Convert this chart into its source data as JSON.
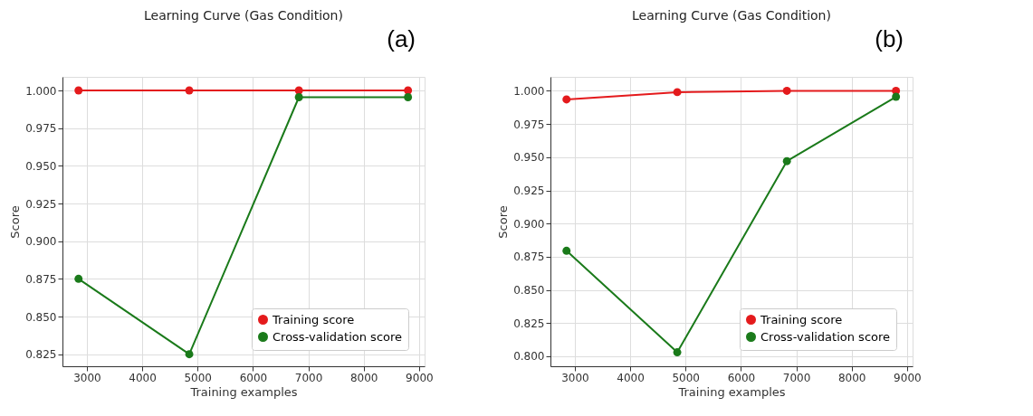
{
  "chart_data": [
    {
      "type": "line",
      "title": "Learning Curve (Gas Condition)",
      "xlabel": "Training examples",
      "ylabel": "Score",
      "annotations": [
        "(a)"
      ],
      "x": [
        2850,
        4850,
        6830,
        8800
      ],
      "xlim": [
        2560,
        9100
      ],
      "xticks": [
        3000,
        4000,
        5000,
        6000,
        7000,
        8000,
        9000
      ],
      "ylim": [
        0.817,
        1.009
      ],
      "yticks": [
        {
          "value": 0.825,
          "label": "0.825"
        },
        {
          "value": 0.85,
          "label": "0.850"
        },
        {
          "value": 0.875,
          "label": "0.875"
        },
        {
          "value": 0.9,
          "label": "0.900"
        },
        {
          "value": 0.925,
          "label": "0.925"
        },
        {
          "value": 0.95,
          "label": "0.950"
        },
        {
          "value": 0.975,
          "label": "0.975"
        },
        {
          "value": 1.0,
          "label": "1.000"
        }
      ],
      "grid": true,
      "legend": "bottom right",
      "marker": "circle",
      "line_style": "solid",
      "series": [
        {
          "name": "Training score",
          "color": "#e41a1c",
          "values": [
            1.0,
            1.0,
            1.0,
            1.0
          ]
        },
        {
          "name": "Cross-validation score",
          "color": "#1a7a1a",
          "values": [
            0.875,
            0.825,
            0.9955,
            0.9955
          ]
        }
      ]
    },
    {
      "type": "line",
      "title": "Learning Curve (Gas Condition)",
      "xlabel": "Training examples",
      "ylabel": "Score",
      "annotations": [
        "(b)"
      ],
      "x": [
        2850,
        4850,
        6830,
        8800
      ],
      "xlim": [
        2560,
        9100
      ],
      "xticks": [
        3000,
        4000,
        5000,
        6000,
        7000,
        8000,
        9000
      ],
      "ylim": [
        0.7925,
        1.0105
      ],
      "yticks": [
        {
          "value": 0.8,
          "label": "0.800"
        },
        {
          "value": 0.825,
          "label": "0.825"
        },
        {
          "value": 0.85,
          "label": "0.850"
        },
        {
          "value": 0.875,
          "label": "0.875"
        },
        {
          "value": 0.9,
          "label": "0.900"
        },
        {
          "value": 0.925,
          "label": "0.925"
        },
        {
          "value": 0.95,
          "label": "0.950"
        },
        {
          "value": 0.975,
          "label": "0.975"
        },
        {
          "value": 1.0,
          "label": "1.000"
        }
      ],
      "grid": true,
      "legend": "bottom right",
      "marker": "circle",
      "line_style": "solid",
      "series": [
        {
          "name": "Training score",
          "color": "#e41a1c",
          "values": [
            0.9935,
            0.999,
            1.0,
            1.0
          ]
        },
        {
          "name": "Cross-validation score",
          "color": "#1a7a1a",
          "values": [
            0.8795,
            0.803,
            0.947,
            0.9955
          ]
        }
      ]
    }
  ]
}
